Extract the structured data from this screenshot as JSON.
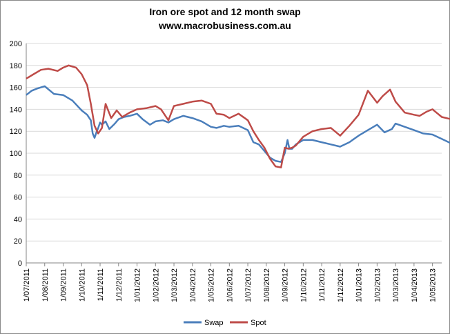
{
  "chart_data": {
    "type": "line",
    "title": "Iron ore spot and 12 month swap",
    "subtitle": "www.macrobusiness.com.au",
    "xlabel": "",
    "ylabel": "",
    "ylim": [
      0,
      200
    ],
    "yticks": [
      0,
      20,
      40,
      60,
      80,
      100,
      120,
      140,
      160,
      180,
      200
    ],
    "grid": true,
    "legend_position": "bottom",
    "x_categories": [
      "1/07/2011",
      "1/08/2011",
      "1/09/2011",
      "1/10/2011",
      "1/11/2011",
      "1/12/2011",
      "1/01/2012",
      "1/02/2012",
      "1/03/2012",
      "1/04/2012",
      "1/05/2012",
      "1/06/2012",
      "1/07/2012",
      "1/08/2012",
      "1/09/2012",
      "1/10/2012",
      "1/11/2012",
      "1/12/2012",
      "1/01/2013",
      "1/02/2013",
      "1/03/2013",
      "1/04/2013",
      "1/05/2013"
    ],
    "series": [
      {
        "name": "Swap",
        "color": "#4a7ebb",
        "x": [
          0,
          0.3,
          0.6,
          1,
          1.5,
          2,
          2.5,
          3,
          3.3,
          3.5,
          3.6,
          3.7,
          3.8,
          3.9,
          4,
          4.1,
          4.3,
          4.5,
          4.8,
          5,
          5.3,
          5.6,
          6,
          6.3,
          6.7,
          7,
          7.4,
          7.7,
          8,
          8.5,
          9,
          9.5,
          10,
          10.3,
          10.7,
          11,
          11.5,
          12,
          12.3,
          12.6,
          12.9,
          13.2,
          13.5,
          13.8,
          14,
          14.15,
          14.25,
          14.4,
          14.6,
          15,
          15.5,
          16,
          16.5,
          17,
          17.5,
          18,
          18.5,
          19,
          19.4,
          19.8,
          20,
          20.5,
          21,
          21.5,
          22,
          22.5,
          23,
          23.3,
          23.5
        ],
        "values": [
          153,
          157,
          159,
          161,
          154,
          153,
          148,
          139,
          135,
          130,
          118,
          114,
          119,
          123,
          128,
          126,
          129,
          122,
          127,
          131,
          133,
          134,
          136,
          131,
          126,
          129,
          130,
          128,
          131,
          134,
          132,
          129,
          124,
          123,
          125,
          124,
          125,
          121,
          110,
          108,
          102,
          96,
          93,
          92,
          100,
          112,
          104,
          104,
          108,
          112,
          112,
          110,
          108,
          106,
          110,
          116,
          121,
          126,
          119,
          122,
          127,
          124,
          121,
          118,
          117,
          113,
          109,
          110,
          110
        ]
      },
      {
        "name": "Spot",
        "color": "#be4b48",
        "x": [
          0,
          0.4,
          0.8,
          1.2,
          1.7,
          2,
          2.3,
          2.7,
          3,
          3.3,
          3.5,
          3.7,
          3.9,
          4.1,
          4.3,
          4.6,
          4.9,
          5.2,
          5.6,
          6,
          6.5,
          7,
          7.3,
          7.7,
          8,
          8.5,
          9,
          9.5,
          10,
          10.3,
          10.7,
          11,
          11.5,
          12,
          12.3,
          12.6,
          12.9,
          13.2,
          13.5,
          13.8,
          14,
          14.2,
          14.4,
          14.6,
          15,
          15.5,
          16,
          16.5,
          17,
          17.5,
          18,
          18.5,
          19,
          19.3,
          19.7,
          20,
          20.5,
          21,
          21.3,
          21.7,
          22,
          22.5,
          23,
          23.3,
          23.5
        ],
        "values": [
          168,
          172,
          176,
          177,
          175,
          178,
          180,
          178,
          172,
          162,
          145,
          125,
          118,
          123,
          145,
          132,
          139,
          133,
          137,
          140,
          141,
          143,
          140,
          130,
          143,
          145,
          147,
          148,
          145,
          136,
          135,
          132,
          136,
          130,
          120,
          112,
          105,
          95,
          88,
          87,
          105,
          104,
          105,
          107,
          115,
          120,
          122,
          123,
          116,
          125,
          135,
          157,
          146,
          152,
          158,
          147,
          137,
          135,
          134,
          138,
          140,
          133,
          131,
          124,
          118
        ]
      }
    ]
  }
}
